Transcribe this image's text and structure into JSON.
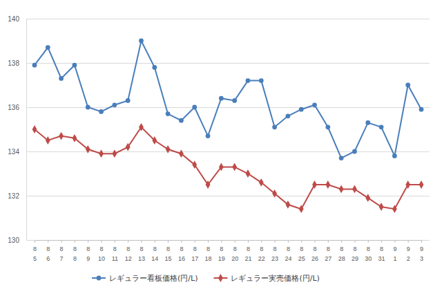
{
  "chart_data": {
    "type": "line",
    "categories": [
      "8\n5",
      "8\n6",
      "8\n7",
      "8\n8",
      "8\n9",
      "8\n10",
      "8\n11",
      "8\n12",
      "8\n13",
      "8\n14",
      "8\n15",
      "8\n16",
      "8\n17",
      "8\n18",
      "8\n19",
      "8\n20",
      "8\n21",
      "8\n22",
      "8\n23",
      "8\n24",
      "8\n25",
      "8\n26",
      "8\n27",
      "8\n28",
      "8\n29",
      "8\n30",
      "8\n31",
      "9\n1",
      "9\n2",
      "9\n3"
    ],
    "series": [
      {
        "name": "レギュラー看板価格(円/L)",
        "color": "#4a7ebb",
        "marker": "circle",
        "values": [
          137.9,
          138.7,
          137.3,
          137.9,
          136.0,
          135.8,
          136.1,
          136.3,
          139.0,
          137.8,
          135.7,
          135.4,
          136.0,
          134.7,
          136.4,
          136.3,
          137.2,
          137.2,
          135.1,
          135.6,
          135.9,
          136.1,
          135.1,
          133.7,
          134.0,
          135.3,
          135.1,
          133.8,
          137.0,
          135.9
        ]
      },
      {
        "name": "レギュラー実売価格(円/L)",
        "color": "#be4b48",
        "marker": "diamond",
        "values": [
          135.0,
          134.5,
          134.7,
          134.6,
          134.1,
          133.9,
          133.9,
          134.2,
          135.1,
          134.5,
          134.1,
          133.9,
          133.4,
          132.5,
          133.3,
          133.3,
          133.0,
          132.6,
          132.1,
          131.6,
          131.4,
          132.5,
          132.5,
          132.3,
          132.3,
          131.9,
          131.5,
          131.4,
          132.5,
          132.5
        ]
      }
    ],
    "ylim": [
      130,
      140
    ],
    "yticks": [
      130,
      132,
      134,
      136,
      138,
      140
    ],
    "grid": true,
    "legend": "bottom"
  }
}
